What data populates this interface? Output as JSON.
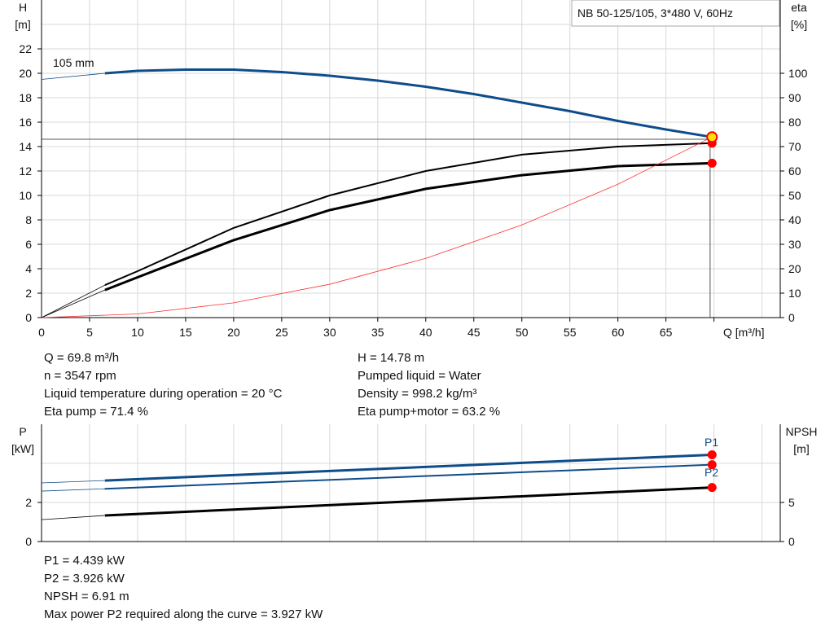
{
  "legend_box": "NB 50-125/105, 3*480 V, 60Hz",
  "chart_data": [
    {
      "type": "line",
      "title": "",
      "ylabel_left": "H",
      "ylabel_left_unit": "[m]",
      "ylabel_right": "eta",
      "ylabel_right_unit": "[%]",
      "xlabel": "Q [m³/h]",
      "xlim": [
        0,
        76.9
      ],
      "ylim_left": [
        0,
        26
      ],
      "ylim_right": [
        0,
        130
      ],
      "xticks": [
        0,
        5,
        10,
        15,
        20,
        25,
        30,
        35,
        40,
        45,
        50,
        55,
        60,
        65
      ],
      "yticks_left": [
        0,
        2,
        4,
        6,
        8,
        10,
        12,
        14,
        16,
        18,
        20,
        22
      ],
      "yticks_right": [
        0,
        10,
        20,
        30,
        40,
        50,
        60,
        70,
        80,
        90,
        100
      ],
      "grid": true,
      "curve_label": "105 mm",
      "series": [
        {
          "axis": "left",
          "color": "#0f4c8a",
          "x": [
            6.6,
            10,
            15,
            20,
            25,
            30,
            35,
            40,
            45,
            50,
            55,
            60,
            65,
            69.8
          ],
          "y": [
            20.0,
            20.2,
            20.3,
            20.3,
            20.1,
            19.8,
            19.4,
            18.9,
            18.3,
            17.6,
            16.9,
            16.1,
            15.4,
            14.78
          ],
          "ext": [
            0,
            19.5
          ]
        },
        {
          "axis": "right",
          "color": "#000000",
          "x": [
            6.6,
            10,
            20,
            30,
            40,
            50,
            60,
            69.8
          ],
          "y": [
            13.3,
            19,
            36.7,
            50,
            60,
            66.7,
            70,
            71.4
          ],
          "ext": [
            0,
            0
          ]
        },
        {
          "axis": "right",
          "color": "#000000",
          "x": [
            6.6,
            10,
            20,
            30,
            40,
            50,
            60,
            69.8
          ],
          "y": [
            11.3,
            16.5,
            31.7,
            44,
            52.7,
            58.3,
            62,
            63.2
          ],
          "ext": [
            0,
            0
          ]
        },
        {
          "axis": "left",
          "color": "#ff3030",
          "x": [
            0,
            10,
            20,
            30,
            40,
            50,
            60,
            69.8
          ],
          "y": [
            0,
            0.3,
            1.21,
            2.73,
            4.85,
            7.58,
            10.92,
            14.78
          ]
        }
      ],
      "duty_point": {
        "Q": 69.8,
        "H": 14.78
      }
    },
    {
      "type": "line",
      "title": "",
      "ylabel_left": "P",
      "ylabel_left_unit": "[kW]",
      "ylabel_right": "NPSH",
      "ylabel_right_unit": "[m]",
      "xlim": [
        0,
        76.9
      ],
      "ylim_left": [
        0,
        6
      ],
      "ylim_right": [
        0,
        15
      ],
      "yticks_left": [
        0,
        2
      ],
      "yticks_right": [
        0,
        5
      ],
      "grid": true,
      "series": [
        {
          "name": "P1",
          "axis": "left",
          "color": "#0f4c8a",
          "x": [
            6.6,
            69.8
          ],
          "y": [
            3.12,
            4.44
          ],
          "ext": [
            0,
            3.0
          ]
        },
        {
          "name": "P2",
          "axis": "left",
          "color": "#0f4c8a",
          "x": [
            6.6,
            69.8
          ],
          "y": [
            2.7,
            3.93
          ],
          "ext": [
            0,
            2.58
          ]
        },
        {
          "axis": "right",
          "color": "#000000",
          "x": [
            6.6,
            69.8
          ],
          "y": [
            3.33,
            6.91
          ],
          "ext": [
            0,
            2.8
          ]
        }
      ]
    }
  ],
  "info1": {
    "left": [
      "Q = 69.8 m³/h",
      "n = 3547 rpm",
      "Liquid temperature during operation = 20 °C",
      "Eta pump = 71.4 %"
    ],
    "right": [
      "H = 14.78 m",
      "Pumped liquid = Water",
      "Density = 998.2 kg/m³",
      "Eta pump+motor = 63.2 %"
    ]
  },
  "info2": [
    "P1 = 4.439 kW",
    "P2 = 3.926 kW",
    "NPSH = 6.91 m",
    "Max power P2 required along the curve = 3.927 kW"
  ]
}
